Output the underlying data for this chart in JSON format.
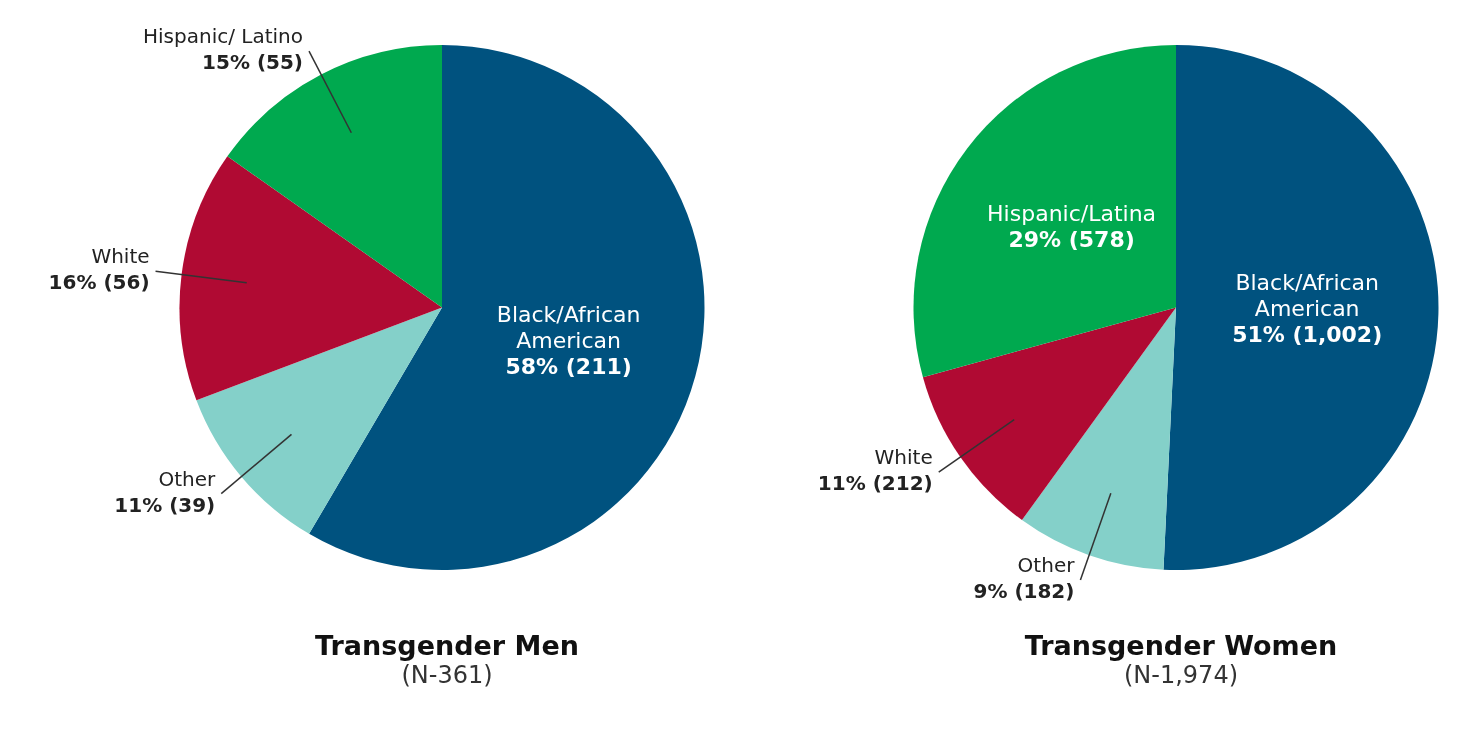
{
  "chart_data": [
    {
      "type": "pie",
      "title": "Transgender Men",
      "subtitle": "(N-361)",
      "categories": [
        "Black/African American",
        "Other",
        "White",
        "Hispanic/ Latino"
      ],
      "values": [
        211,
        39,
        56,
        55
      ],
      "colors": [
        "#00527f",
        "#84d0c9",
        "#b00a33",
        "#00a94f"
      ],
      "value_labels": [
        "58% (211)",
        "11% (39)",
        "16% (56)",
        "15% (55)"
      ]
    },
    {
      "type": "pie",
      "title": "Transgender Women",
      "subtitle": "(N-1,974)",
      "categories": [
        "Black/African American",
        "Other",
        "White",
        "Hispanic/Latina"
      ],
      "values": [
        1002,
        182,
        212,
        578
      ],
      "colors": [
        "#00527f",
        "#84d0c9",
        "#b00a33",
        "#00a94f"
      ],
      "value_labels": [
        "51% (1,002)",
        "9% (182)",
        "11% (212)",
        "29% (578)"
      ]
    }
  ]
}
